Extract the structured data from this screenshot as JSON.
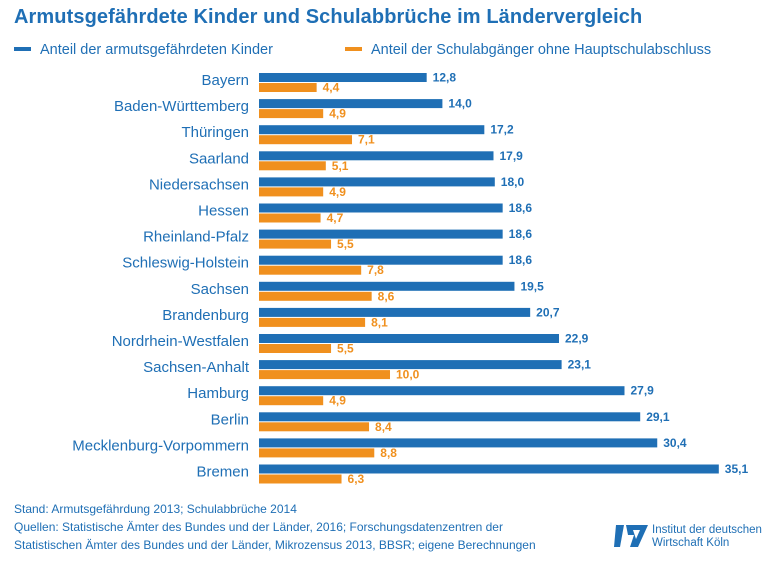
{
  "colors": {
    "blue": "#1f6fb5",
    "orange": "#f0901e",
    "text": "#1f6fb5"
  },
  "chart_data": {
    "type": "bar",
    "orientation": "horizontal",
    "title": "Armutsgefährdete Kinder und Schulabbrüche im Ländervergleich",
    "categories": [
      "Bayern",
      "Baden-Württemberg",
      "Thüringen",
      "Saarland",
      "Niedersachsen",
      "Hessen",
      "Rheinland-Pfalz",
      "Schleswig-Holstein",
      "Sachsen",
      "Brandenburg",
      "Nordrhein-Westfalen",
      "Sachsen-Anhalt",
      "Hamburg",
      "Berlin",
      "Mecklenburg-Vorpommern",
      "Bremen"
    ],
    "series": [
      {
        "name": "Anteil der armutsgefährdeten Kinder",
        "color": "#1f6fb5",
        "values": [
          12.8,
          14.0,
          17.2,
          17.9,
          18.0,
          18.6,
          18.6,
          18.6,
          19.5,
          20.7,
          22.9,
          23.1,
          27.9,
          29.1,
          30.4,
          35.1
        ],
        "labels": [
          "12,8",
          "14,0",
          "17,2",
          "17,9",
          "18,0",
          "18,6",
          "18,6",
          "18,6",
          "19,5",
          "20,7",
          "22,9",
          "23,1",
          "27,9",
          "29,1",
          "30,4",
          "35,1"
        ]
      },
      {
        "name": "Anteil der Schulabgänger ohne Hauptschulabschluss",
        "color": "#f0901e",
        "values": [
          4.4,
          4.9,
          7.1,
          5.1,
          4.9,
          4.7,
          5.5,
          7.8,
          8.6,
          8.1,
          5.5,
          10.0,
          4.9,
          8.4,
          8.8,
          6.3
        ],
        "labels": [
          "4,4",
          "4,9",
          "7,1",
          "5,1",
          "4,9",
          "4,7",
          "5,5",
          "7,8",
          "8,6",
          "8,1",
          "5,5",
          "10,0",
          "4,9",
          "8,4",
          "8,8",
          "6,3"
        ]
      }
    ],
    "xlim": [
      0,
      36
    ],
    "legend_position": "top",
    "grid": false
  },
  "footer": {
    "stand": "Stand: Armutsgefährdung 2013; Schulabbrüche 2014",
    "quellen_1": "Quellen: Statistische Ämter des Bundes und der Länder, 2016; Forschungsdatenzentren der",
    "quellen_2": "Statistischen Ämter des Bundes und der Länder, Mikrozensus 2013, BBSR; eigene Berechnungen"
  },
  "logo": {
    "line1": "Institut der deutschen",
    "line2": "Wirtschaft Köln",
    "mark": "iW"
  }
}
